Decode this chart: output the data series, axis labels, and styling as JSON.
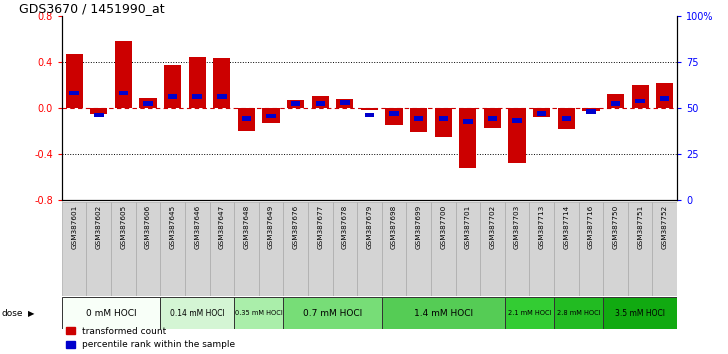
{
  "title": "GDS3670 / 1451990_at",
  "samples": [
    "GSM387601",
    "GSM387602",
    "GSM387605",
    "GSM387606",
    "GSM387645",
    "GSM387646",
    "GSM387647",
    "GSM387648",
    "GSM387649",
    "GSM387676",
    "GSM387677",
    "GSM387678",
    "GSM387679",
    "GSM387698",
    "GSM387699",
    "GSM387700",
    "GSM387701",
    "GSM387702",
    "GSM387703",
    "GSM387713",
    "GSM387714",
    "GSM387716",
    "GSM387750",
    "GSM387751",
    "GSM387752"
  ],
  "red_values": [
    0.47,
    -0.05,
    0.58,
    0.09,
    0.37,
    0.44,
    0.43,
    -0.2,
    -0.13,
    0.07,
    0.1,
    0.08,
    -0.02,
    -0.15,
    -0.21,
    -0.25,
    -0.52,
    -0.17,
    -0.48,
    -0.08,
    -0.18,
    -0.03,
    0.12,
    0.2,
    0.22
  ],
  "blue_positions": [
    0.13,
    -0.06,
    0.13,
    0.04,
    0.1,
    0.1,
    0.1,
    -0.09,
    -0.07,
    0.04,
    0.04,
    0.05,
    -0.06,
    -0.05,
    -0.09,
    -0.09,
    -0.12,
    -0.09,
    -0.11,
    -0.05,
    -0.09,
    -0.03,
    0.04,
    0.06,
    0.08
  ],
  "dose_groups": [
    {
      "label": "0 mM HOCl",
      "start": 0,
      "end": 4,
      "color": "#f8fff8"
    },
    {
      "label": "0.14 mM HOCl",
      "start": 4,
      "end": 7,
      "color": "#d4f5d4"
    },
    {
      "label": "0.35 mM HOCl",
      "start": 7,
      "end": 9,
      "color": "#aaeeaa"
    },
    {
      "label": "0.7 mM HOCl",
      "start": 9,
      "end": 13,
      "color": "#77dd77"
    },
    {
      "label": "1.4 mM HOCl",
      "start": 13,
      "end": 18,
      "color": "#55cc55"
    },
    {
      "label": "2.1 mM HOCl",
      "start": 18,
      "end": 20,
      "color": "#33cc33"
    },
    {
      "label": "2.8 mM HOCl",
      "start": 20,
      "end": 22,
      "color": "#22bb22"
    },
    {
      "label": "3.5 mM HOCl",
      "start": 22,
      "end": 25,
      "color": "#11aa11"
    }
  ],
  "ylim_left": [
    -0.8,
    0.8
  ],
  "ylim_right": [
    0,
    100
  ],
  "right_ticks": [
    0,
    25,
    50,
    75,
    100
  ],
  "right_tick_labels": [
    "0",
    "25",
    "50",
    "75",
    "100%"
  ],
  "left_ticks": [
    -0.8,
    -0.4,
    0.0,
    0.4,
    0.8
  ],
  "red_color": "#cc0000",
  "blue_color": "#0000cc",
  "bar_width": 0.7,
  "bg_color": "#d8d8d8",
  "label_area_color": "#d4d4d4"
}
